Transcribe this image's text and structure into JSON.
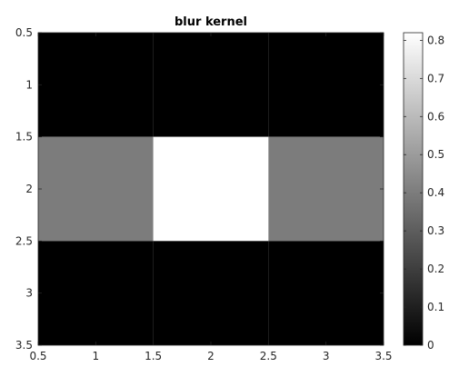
{
  "chart_data": {
    "type": "heatmap",
    "title": "blur kernel",
    "xlabel": "",
    "ylabel": "",
    "x": [
      1,
      2,
      3
    ],
    "y": [
      1,
      2,
      3
    ],
    "values": [
      [
        0,
        0,
        0
      ],
      [
        0.4,
        0.82,
        0.4
      ],
      [
        0,
        0,
        0
      ]
    ],
    "xlim": [
      0.5,
      3.5
    ],
    "ylim": [
      0.5,
      3.5
    ],
    "y_direction": "reversed",
    "xticks": [
      "0.5",
      "1",
      "1.5",
      "2",
      "2.5",
      "3",
      "3.5"
    ],
    "yticks": [
      "0.5",
      "1",
      "1.5",
      "2",
      "2.5",
      "3",
      "3.5"
    ],
    "colormap": "gray",
    "colorbar": {
      "range": [
        0,
        0.82
      ],
      "ticks": [
        "0",
        "0.1",
        "0.2",
        "0.3",
        "0.4",
        "0.5",
        "0.6",
        "0.7",
        "0.8"
      ],
      "placement": "right"
    },
    "grid": false
  }
}
